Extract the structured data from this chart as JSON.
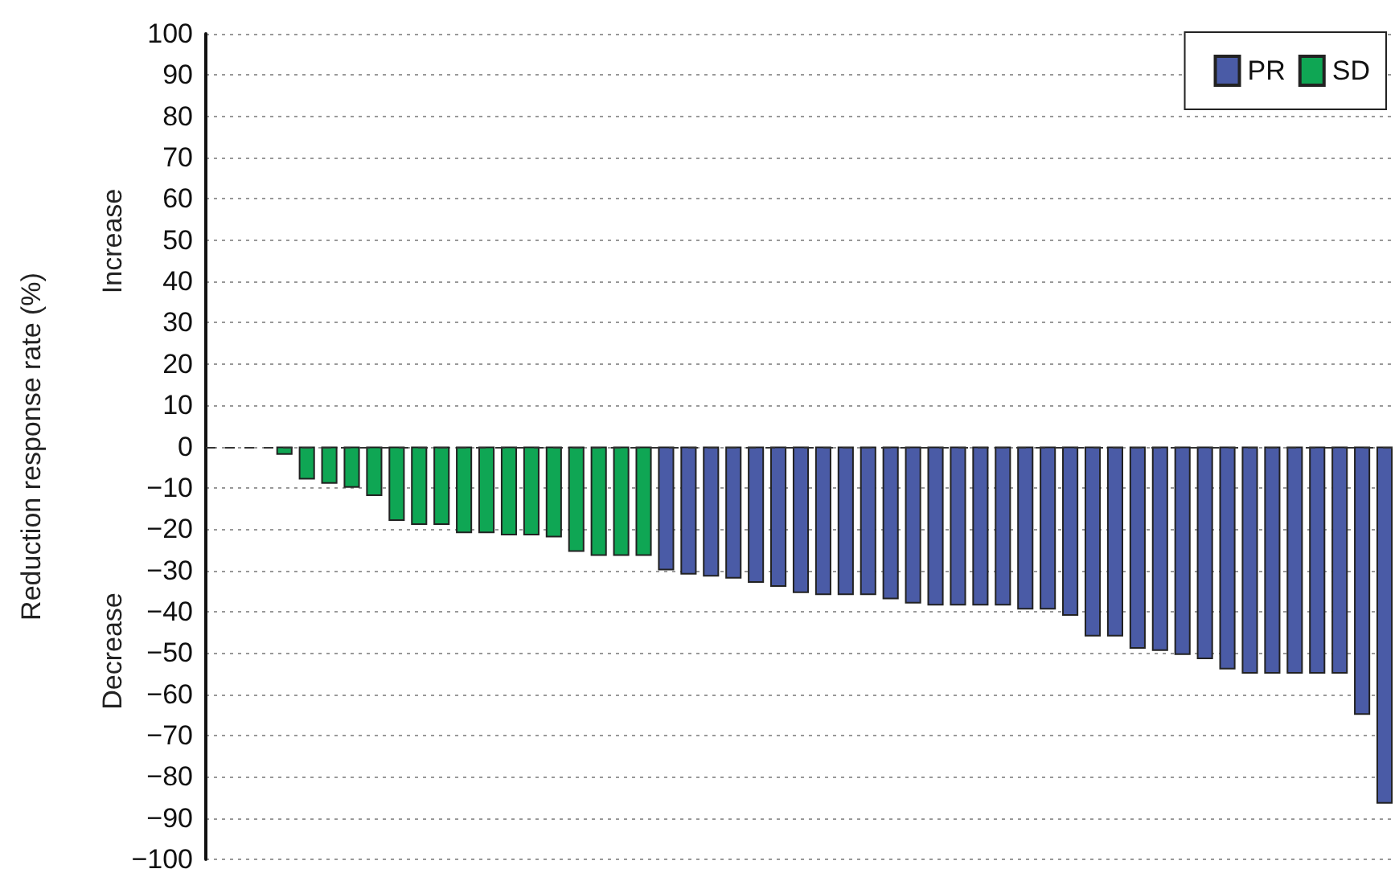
{
  "chart_data": {
    "type": "bar",
    "ylabel": "Reduction response rate (%)",
    "annotations": [
      "Increase",
      "Decrease"
    ],
    "categories": [
      null,
      null,
      null,
      null,
      null,
      null,
      null,
      null,
      null,
      null,
      null,
      null,
      null,
      null,
      null,
      null,
      null,
      null,
      null,
      null,
      null,
      null,
      null,
      null,
      null,
      null,
      null,
      null,
      null,
      null,
      null,
      null,
      null,
      null,
      null,
      null,
      null,
      null,
      null,
      null,
      null,
      null,
      null,
      null,
      null,
      null,
      null,
      null,
      null,
      null,
      null,
      null,
      null
    ],
    "stacked": true,
    "series": [
      {
        "name": "PR",
        "color": "#4a5ba6",
        "values": [
          null,
          null,
          null,
          null,
          null,
          null,
          null,
          null,
          null,
          null,
          null,
          null,
          null,
          null,
          null,
          null,
          null,
          null,
          null,
          null,
          -30,
          -31,
          -31.5,
          -32,
          -33,
          -34,
          -35.5,
          -36,
          -36,
          -36,
          -37,
          -38,
          -38.5,
          -38.5,
          -38.5,
          -38.5,
          -39.5,
          -39.5,
          -41,
          -46,
          -46,
          -49,
          -49.5,
          -50.5,
          -51.5,
          -54,
          -55,
          -55,
          -55,
          -55,
          -55,
          -65,
          -86.5
        ]
      },
      {
        "name": "SD",
        "color": "#0fa654",
        "values": [
          null,
          null,
          null,
          -2,
          -8,
          -9,
          -10,
          -12,
          -18,
          -19,
          -19,
          -21,
          -21,
          -21.5,
          -21.5,
          -22,
          -25.5,
          -26.5,
          -26.5,
          -26.5,
          null,
          null,
          null,
          null,
          null,
          null,
          null,
          null,
          null,
          null,
          null,
          null,
          null,
          null,
          null,
          null,
          null,
          null,
          null,
          null,
          null,
          null,
          null,
          null,
          null,
          null,
          null,
          null,
          null,
          null,
          null,
          null,
          null
        ]
      }
    ],
    "ylim": [
      -100,
      100
    ],
    "yticks": [
      -100,
      -90,
      -80,
      -70,
      -60,
      -50,
      -40,
      -30,
      -20,
      -10,
      0,
      10,
      20,
      30,
      40,
      50,
      60,
      70,
      80,
      90,
      100
    ],
    "ref_lines": [
      {
        "axis": "y",
        "value": 0,
        "line_style": "dashed",
        "color": "#333333"
      }
    ],
    "grid": "y",
    "legend": "top right",
    "tick_labels": "y"
  }
}
